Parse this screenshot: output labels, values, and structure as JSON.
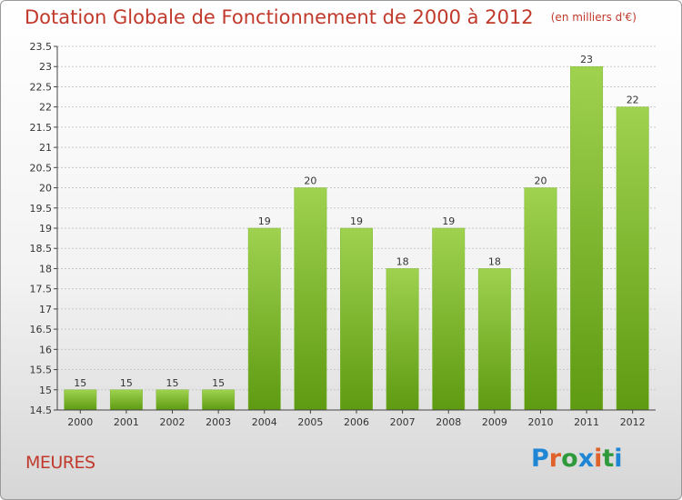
{
  "header": {
    "title": "Dotation Globale de Fonctionnement de 2000 à 2012",
    "unit": "(en milliers d'€)"
  },
  "footer": {
    "commune": "MEURES",
    "logo": "Proxiti"
  },
  "colors": {
    "title": "#c0392b",
    "bar_light": "#9fd24f",
    "bar_dark": "#5e9a12",
    "grid": "#c8c8c8",
    "logo_letters": [
      "#1f86d6",
      "#e0622b",
      "#2e9a3c",
      "#1f86d6",
      "#e0622b",
      "#2e9a3c",
      "#1f86d6"
    ]
  },
  "chart_data": {
    "type": "bar",
    "title": "Dotation Globale de Fonctionnement de 2000 à 2012",
    "subtitle": "(en milliers d'€)",
    "xlabel": "",
    "ylabel": "",
    "categories": [
      "2000",
      "2001",
      "2002",
      "2003",
      "2004",
      "2005",
      "2006",
      "2007",
      "2008",
      "2009",
      "2010",
      "2011",
      "2012"
    ],
    "values": [
      15,
      15,
      15,
      15,
      19,
      20,
      19,
      18,
      19,
      18,
      20,
      23,
      22
    ],
    "ylim": [
      14.5,
      23.5
    ],
    "yticks": [
      "14.5",
      "15",
      "15.5",
      "16",
      "16.5",
      "17",
      "17.5",
      "18",
      "18.5",
      "19",
      "19.5",
      "20",
      "20.5",
      "21",
      "21.5",
      "22",
      "22.5",
      "23",
      "23.5"
    ],
    "grid": true,
    "legend": "none"
  }
}
